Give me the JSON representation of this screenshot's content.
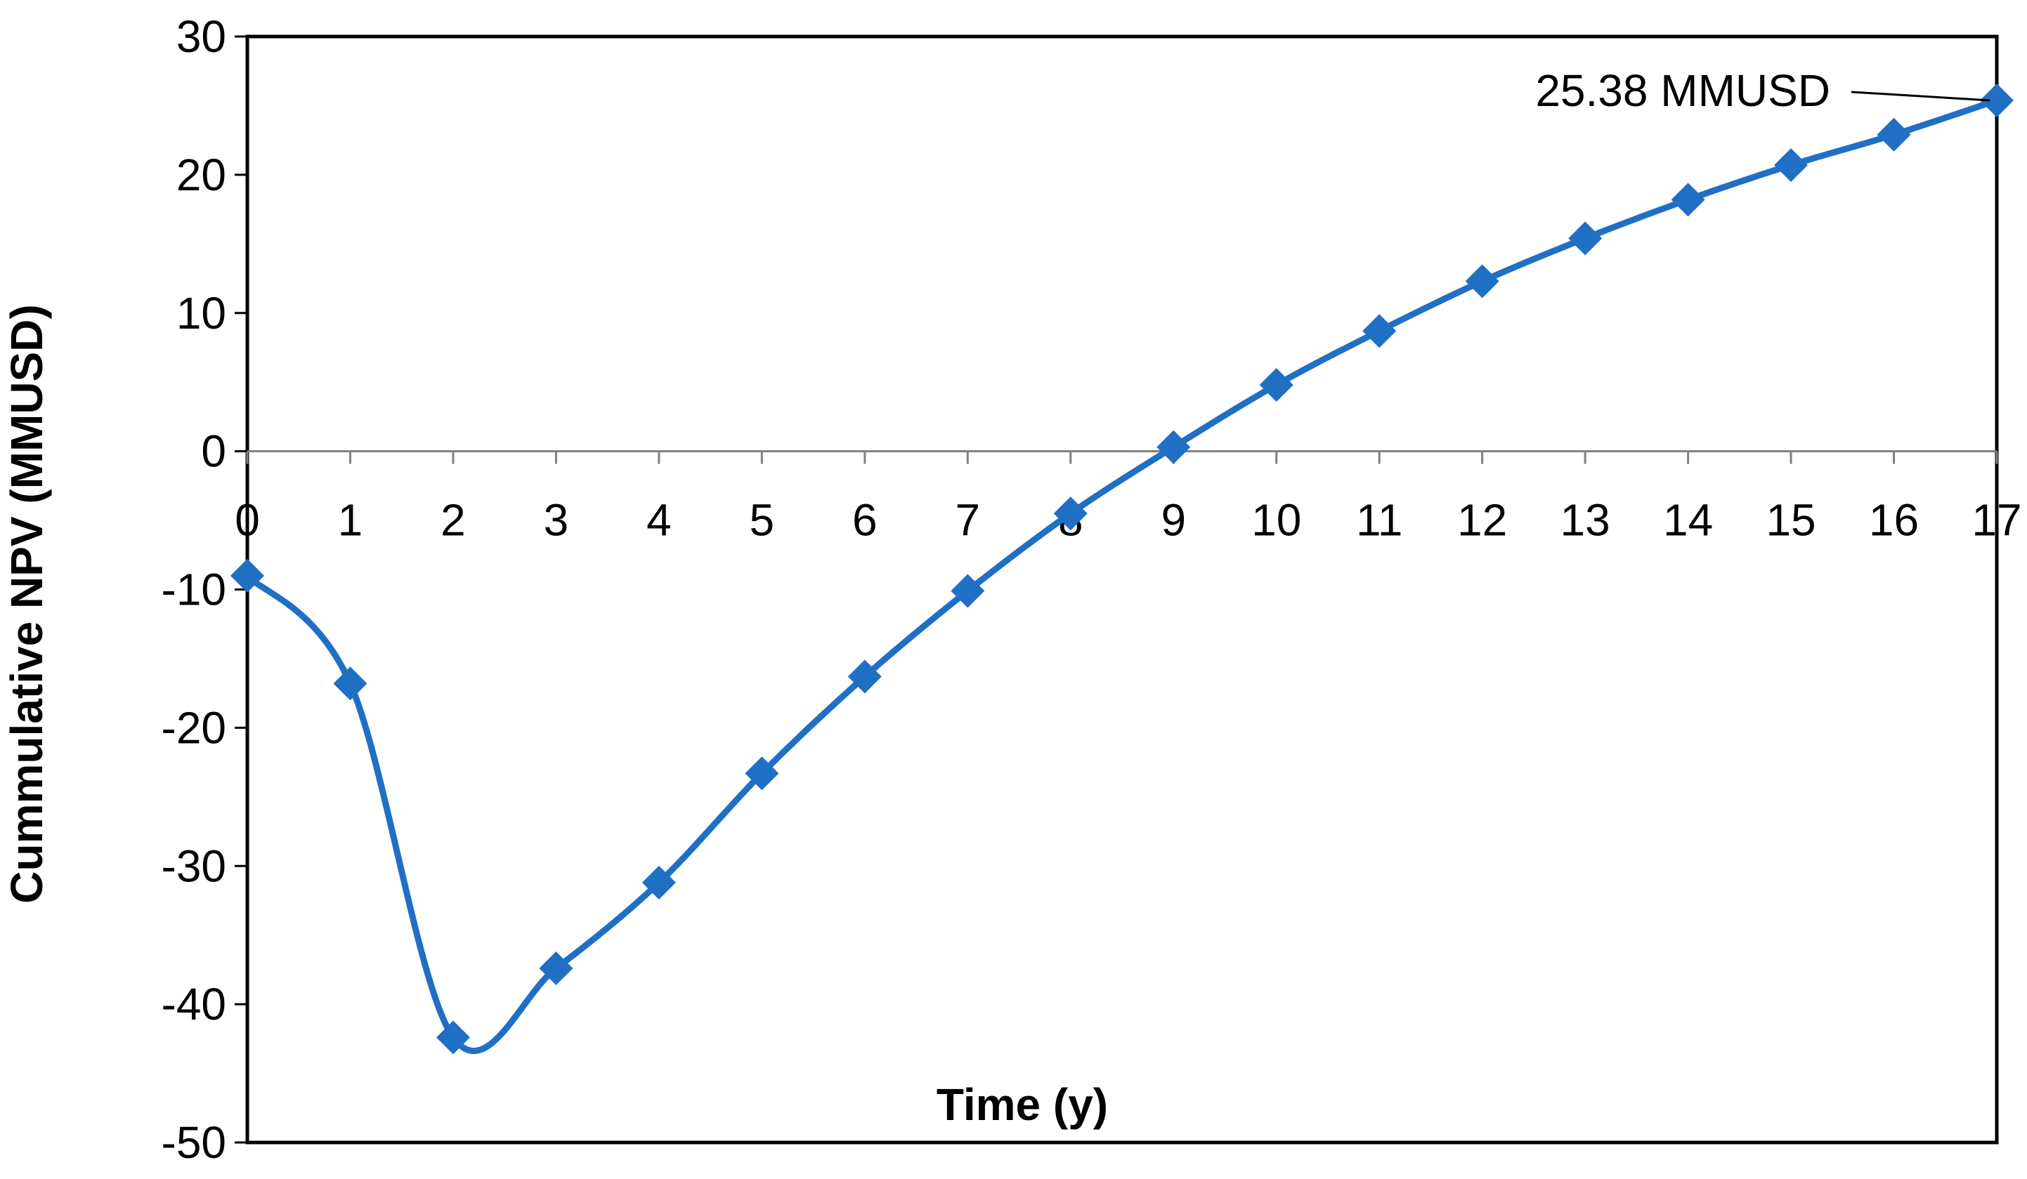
{
  "chart_data": {
    "type": "line",
    "xlabel": "Time (y)",
    "ylabel": "Cummulative NPV (MMUSD)",
    "xlim": [
      0,
      17
    ],
    "ylim": [
      -50,
      30
    ],
    "x_ticks": [
      0,
      1,
      2,
      3,
      4,
      5,
      6,
      7,
      8,
      9,
      10,
      11,
      12,
      13,
      14,
      15,
      16,
      17
    ],
    "y_ticks": [
      30,
      20,
      10,
      0,
      -10,
      -20,
      -30,
      -40,
      -50
    ],
    "grid": false,
    "color": "#1f6fc5",
    "marker": "diamond",
    "smoothed": true,
    "series": [
      {
        "x": [
          0,
          1,
          2,
          3,
          4,
          5,
          6,
          7,
          8,
          9,
          10,
          11,
          12,
          13,
          14,
          15,
          16,
          17
        ],
        "values": [
          -9.0,
          -16.8,
          -42.4,
          -37.4,
          -31.2,
          -23.3,
          -16.3,
          -10.1,
          -4.5,
          0.3,
          4.8,
          8.7,
          12.3,
          15.4,
          18.2,
          20.7,
          22.9,
          25.38
        ]
      }
    ],
    "annotations": [
      {
        "text": "25.38 MMUSD",
        "x": 17,
        "y": 25.38
      }
    ]
  }
}
